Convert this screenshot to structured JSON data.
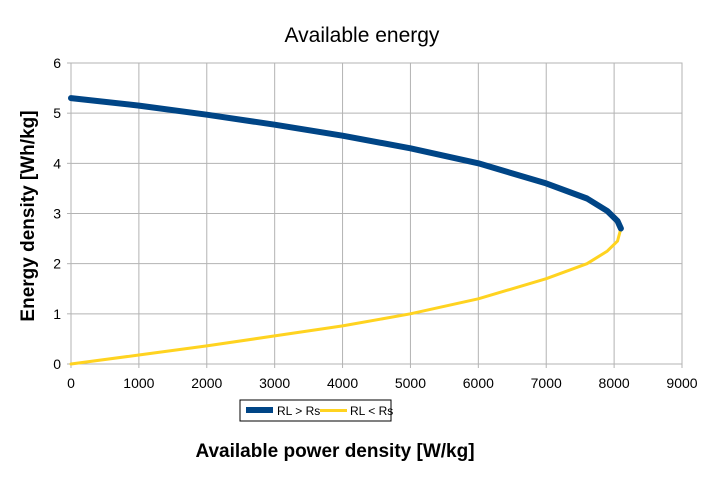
{
  "chart_data": {
    "type": "line",
    "title": "Available energy",
    "xlabel": "Available power density [W/kg]",
    "ylabel": "Energy density [Wh/kg]",
    "xlim": [
      0,
      9000
    ],
    "ylim": [
      0,
      6
    ],
    "xticks": [
      "0",
      "1000",
      "2000",
      "3000",
      "4000",
      "5000",
      "6000",
      "7000",
      "8000",
      "9000"
    ],
    "yticks": [
      "0",
      "1",
      "2",
      "3",
      "4",
      "5",
      "6"
    ],
    "grid": true,
    "legend_position": "bottom-left",
    "series": [
      {
        "name": "RL > Rs",
        "color": "#004586",
        "x": [
          0,
          1000,
          2000,
          3000,
          4000,
          5000,
          6000,
          7000,
          7600,
          7900,
          8050,
          8100
        ],
        "y": [
          5.3,
          5.15,
          4.97,
          4.77,
          4.55,
          4.3,
          4.0,
          3.6,
          3.3,
          3.05,
          2.85,
          2.7
        ]
      },
      {
        "name": "RL < Rs",
        "color": "#ffd320",
        "x": [
          0,
          1000,
          2000,
          3000,
          4000,
          5000,
          6000,
          7000,
          7600,
          7900,
          8050,
          8100
        ],
        "y": [
          0.0,
          0.18,
          0.36,
          0.56,
          0.76,
          1.0,
          1.3,
          1.7,
          2.0,
          2.25,
          2.45,
          2.7
        ]
      }
    ]
  }
}
